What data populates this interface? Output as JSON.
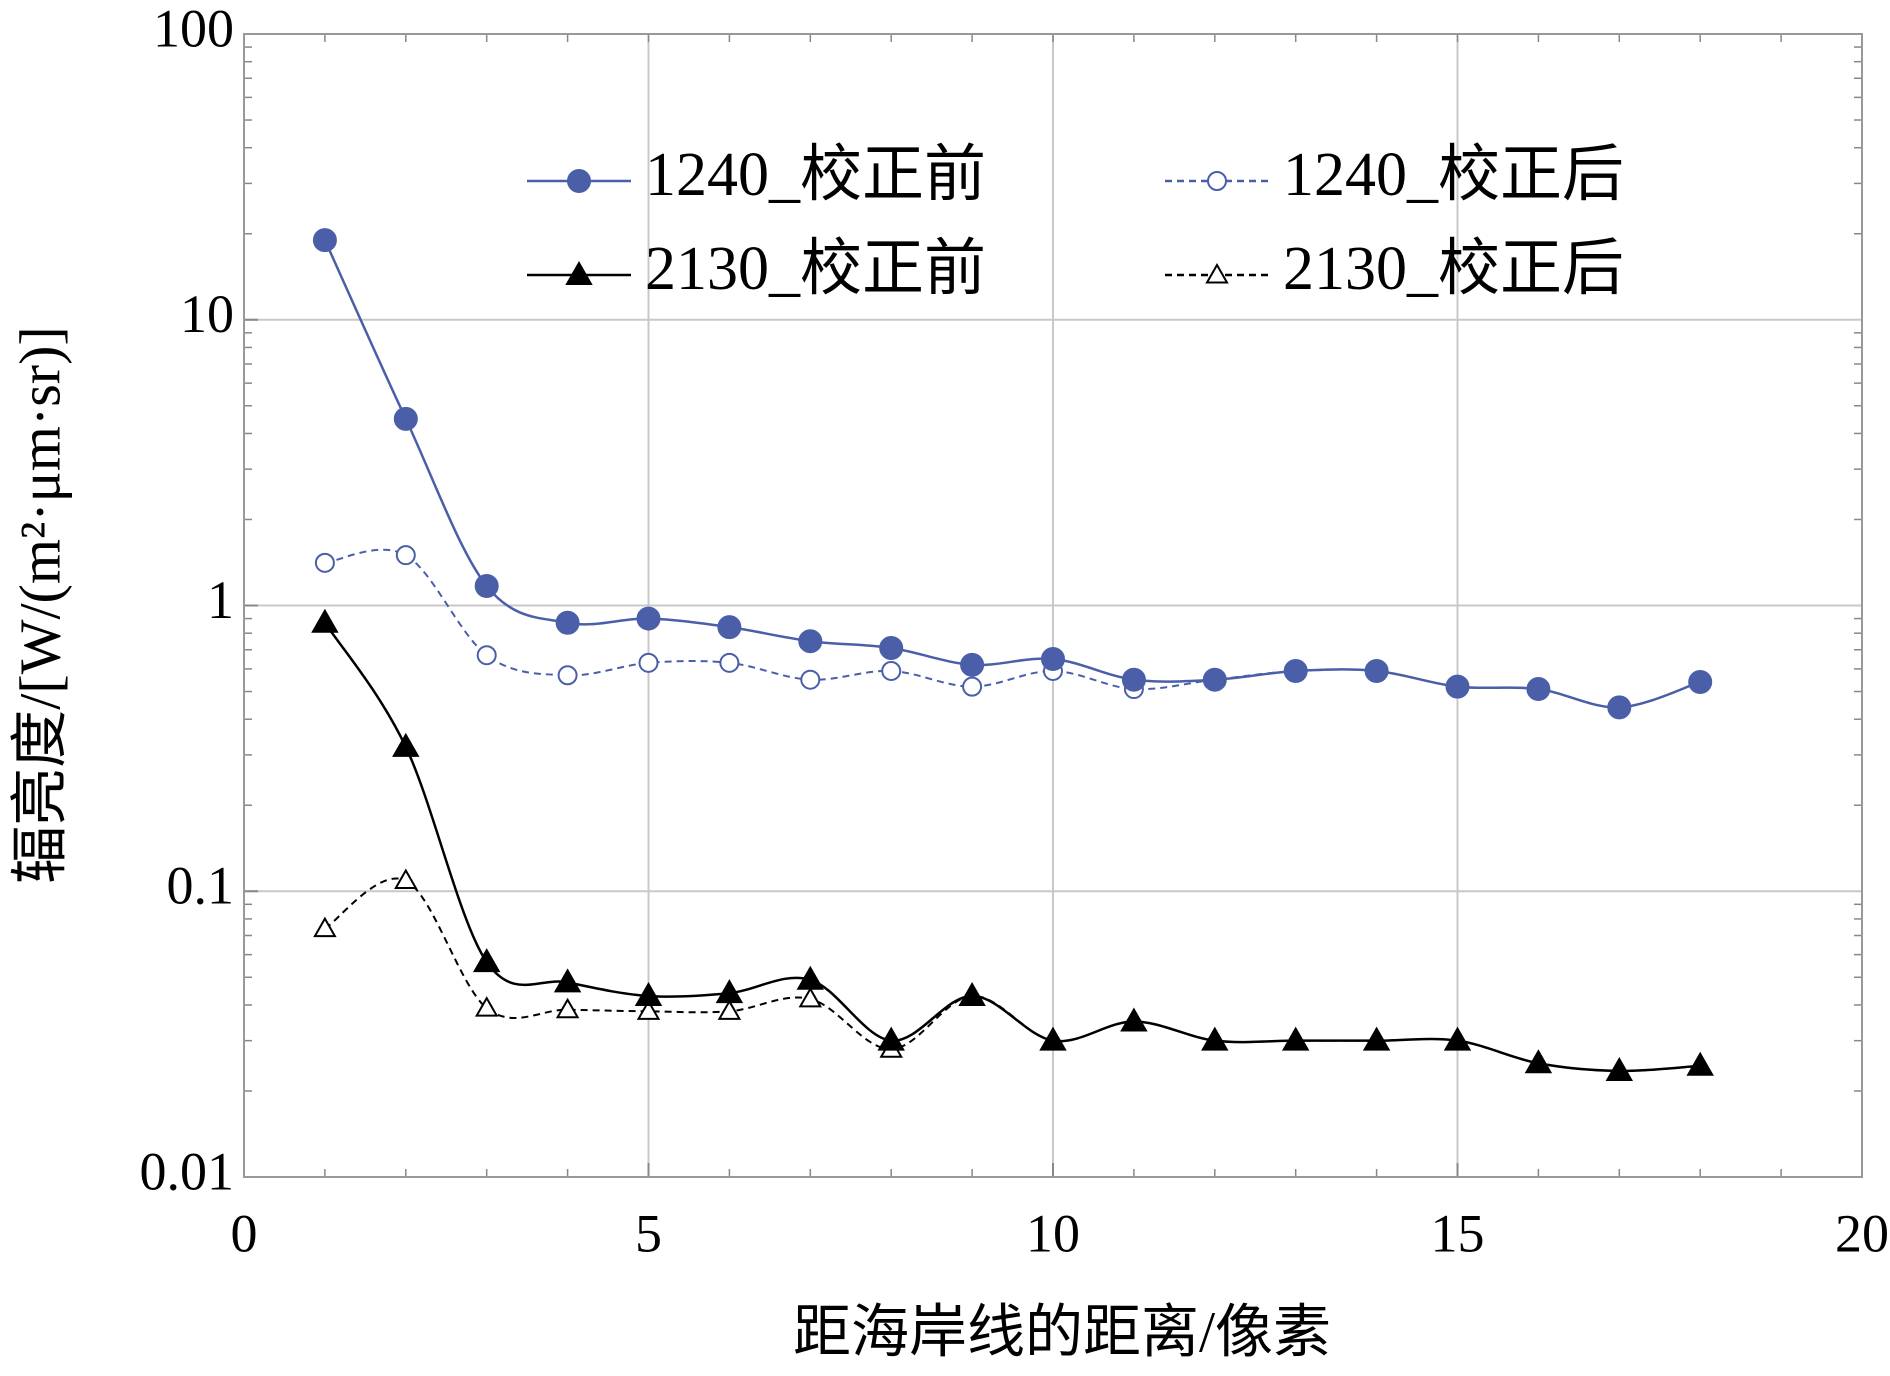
{
  "chart_data": {
    "type": "line",
    "x_label": "距海岸线的距离/像素",
    "y_label": "辐亮度/[W/(m²·μm·sr)]",
    "x": [
      1,
      2,
      3,
      4,
      5,
      6,
      7,
      8,
      9,
      10,
      11,
      12,
      13,
      14,
      15,
      16,
      17,
      18
    ],
    "series": [
      {
        "name": "1240_校正前",
        "color": "#4a5fa8",
        "marker": "circle",
        "filled": true,
        "dashed": false,
        "values": [
          19,
          4.5,
          1.17,
          0.87,
          0.9,
          0.84,
          0.75,
          0.71,
          0.62,
          0.65,
          0.55,
          0.55,
          0.59,
          0.59,
          0.52,
          0.51,
          0.44,
          0.54
        ]
      },
      {
        "name": "1240_校正后",
        "color": "#4a5fa8",
        "marker": "circle",
        "filled": false,
        "dashed": true,
        "values": [
          1.41,
          1.5,
          0.67,
          0.57,
          0.63,
          0.63,
          0.55,
          0.59,
          0.52,
          0.59,
          0.51,
          0.55,
          0.59,
          0.59,
          0.52,
          0.51,
          0.44,
          0.54
        ]
      },
      {
        "name": "2130_校正前",
        "color": "#000000",
        "marker": "triangle",
        "filled": true,
        "dashed": false,
        "values": [
          0.87,
          0.32,
          0.0565,
          0.048,
          0.043,
          0.044,
          0.049,
          0.03,
          0.043,
          0.03,
          0.035,
          0.03,
          0.03,
          0.03,
          0.03,
          0.025,
          0.0235,
          0.0245
        ]
      },
      {
        "name": "2130_校正后",
        "color": "#000000",
        "marker": "triangle",
        "filled": false,
        "dashed": true,
        "values": [
          0.074,
          0.109,
          0.039,
          0.0385,
          0.038,
          0.038,
          0.042,
          0.028,
          0.043,
          0.03,
          0.035,
          0.03,
          0.03,
          0.03,
          0.03,
          0.025,
          0.0235,
          0.0245
        ]
      }
    ],
    "xlim": [
      0,
      20
    ],
    "xticks": [
      0,
      5,
      10,
      15,
      20
    ],
    "ylim": [
      0.01,
      100
    ],
    "yticks": [
      0.01,
      0.1,
      1,
      10,
      100
    ],
    "y_log": true,
    "grid": true
  }
}
